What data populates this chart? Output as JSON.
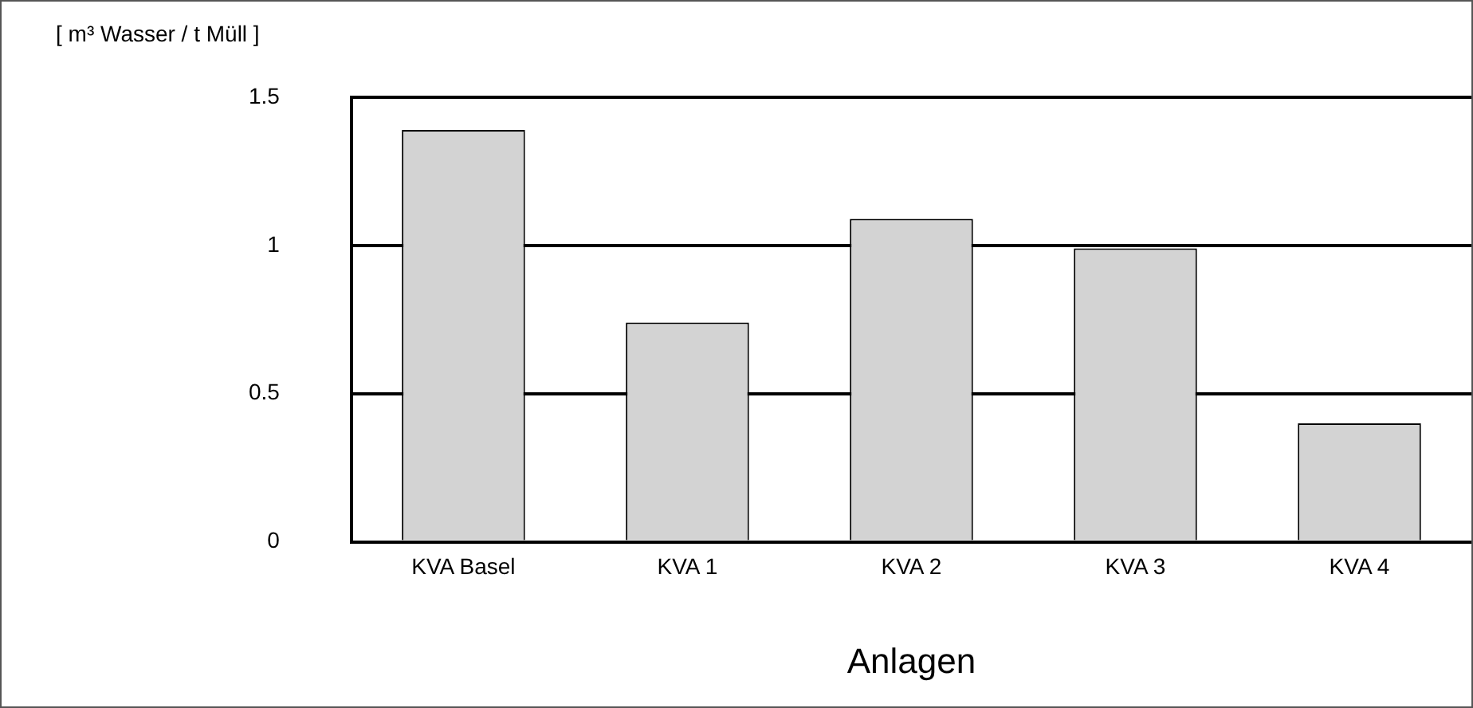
{
  "chart_data": {
    "type": "bar",
    "ylabel": "[ m³ Wasser / t Müll ]",
    "xlabel": "Anlagen",
    "categories": [
      "KVA Basel",
      "KVA 1",
      "KVA 2",
      "KVA 3",
      "KVA 4"
    ],
    "values": [
      1.39,
      0.74,
      1.09,
      0.99,
      0.4
    ],
    "color": "#d3d3d3",
    "ylim": [
      0,
      1.5
    ],
    "yticks": [
      0,
      0.5,
      1,
      1.5
    ],
    "grid": "y",
    "legend": false
  }
}
